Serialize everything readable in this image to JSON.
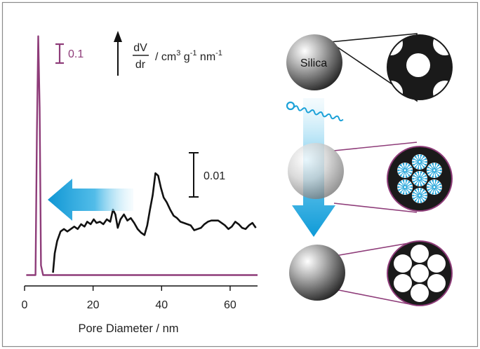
{
  "figure": {
    "scale_bar_purple": "0.1",
    "scale_bar_black": "0.01",
    "ylabel_numerator": "dV",
    "ylabel_denominator": "dr",
    "ylabel_units_prefix": "/ cm",
    "ylabel_units_cm_exp": "3",
    "ylabel_units_g": " g",
    "ylabel_units_g_exp": "-1",
    "ylabel_units_nm": " nm",
    "ylabel_units_nm_exp": "-1",
    "sphere_label": "Silica",
    "colors": {
      "purple": "#8e3c79",
      "black": "#111111",
      "cyan": "#1ba1d8",
      "frame": "#8a8a8a"
    }
  },
  "chart_data": {
    "type": "line",
    "xlabel": "Pore Diameter / nm",
    "xlim": [
      0,
      68
    ],
    "xticks": [
      0,
      20,
      40,
      60
    ],
    "ylim": [
      0,
      1
    ],
    "series": [
      {
        "color": "#8e3c79",
        "x": [
          0.5,
          3.2,
          3.6,
          4.0,
          4.4,
          4.8,
          5.4,
          6.0,
          68
        ],
        "y": [
          0.01,
          0.01,
          0.6,
          0.995,
          0.7,
          0.05,
          0.01,
          0.01,
          0.01
        ]
      },
      {
        "color": "#111111",
        "x": [
          8.3,
          8.8,
          9.5,
          10.5,
          11.5,
          12.5,
          13.5,
          14.5,
          15.5,
          16.5,
          17.5,
          18.3,
          19.3,
          20.2,
          21.0,
          22.0,
          23.0,
          24.0,
          25.0,
          25.8,
          26.5,
          27.2,
          28.0,
          29.0,
          30.0,
          31.0,
          32.0,
          33.0,
          34.0,
          35.0,
          35.8,
          36.6,
          37.4,
          38.2,
          39.0,
          39.8,
          40.6,
          41.5,
          42.5,
          43.5,
          44.5,
          45.5,
          46.5,
          47.5,
          48.5,
          49.5,
          50.5,
          51.5,
          52.5,
          53.5,
          54.5,
          55.5,
          56.5,
          57.5,
          58.5,
          59.5,
          60.5,
          61.5,
          62.5,
          63.5,
          64.5,
          65.5,
          66.5,
          67.5
        ],
        "y": [
          0.02,
          0.1,
          0.15,
          0.19,
          0.2,
          0.19,
          0.2,
          0.21,
          0.2,
          0.22,
          0.21,
          0.23,
          0.22,
          0.24,
          0.225,
          0.23,
          0.22,
          0.24,
          0.23,
          0.28,
          0.26,
          0.205,
          0.24,
          0.26,
          0.235,
          0.245,
          0.225,
          0.2,
          0.185,
          0.175,
          0.215,
          0.28,
          0.34,
          0.43,
          0.42,
          0.37,
          0.33,
          0.31,
          0.28,
          0.255,
          0.245,
          0.23,
          0.225,
          0.22,
          0.215,
          0.195,
          0.2,
          0.205,
          0.22,
          0.23,
          0.235,
          0.235,
          0.235,
          0.225,
          0.215,
          0.2,
          0.21,
          0.23,
          0.22,
          0.205,
          0.2,
          0.215,
          0.225,
          0.205
        ]
      }
    ]
  }
}
